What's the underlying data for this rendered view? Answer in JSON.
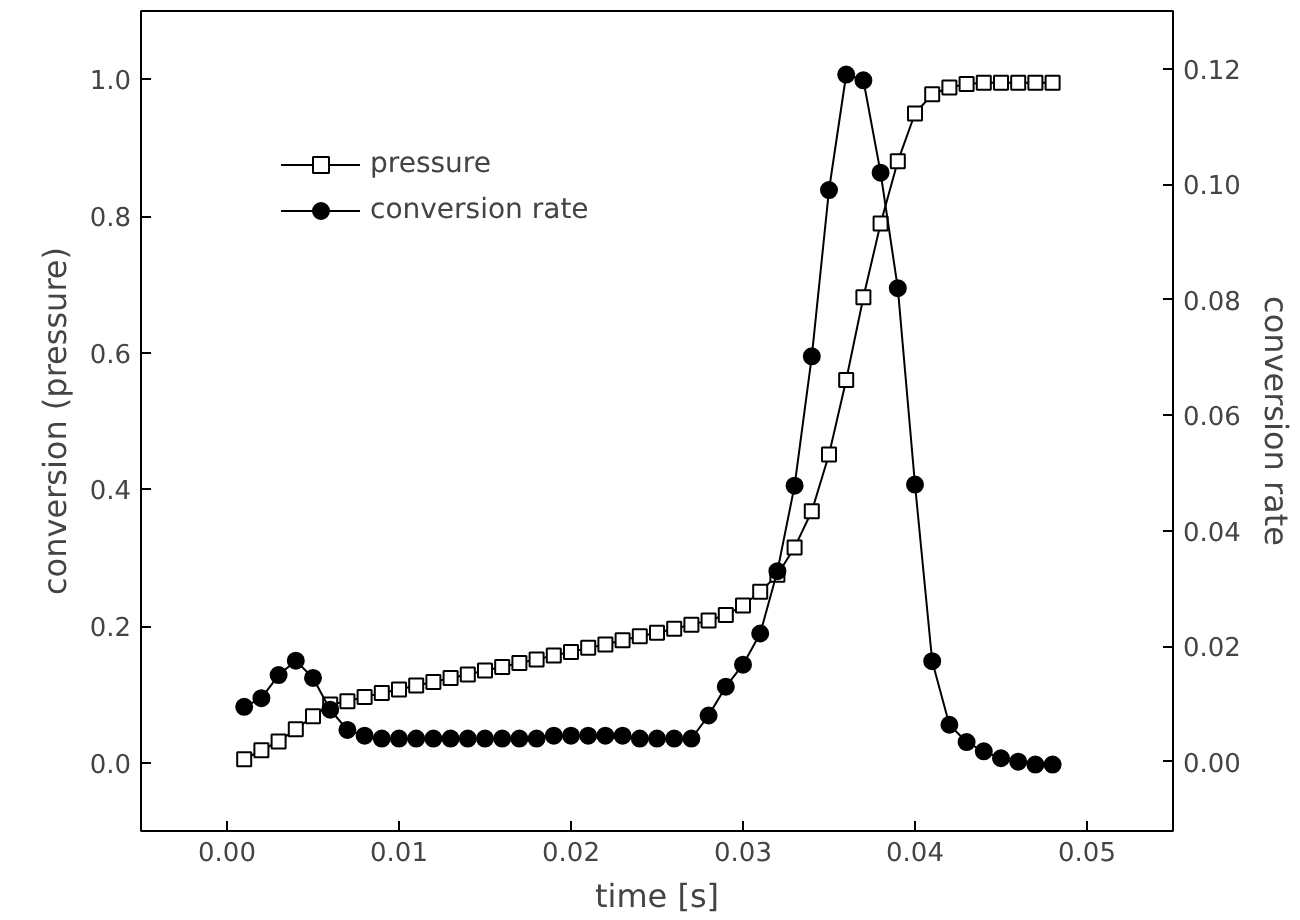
{
  "chart_data": {
    "type": "line",
    "xlabel": "time [s]",
    "ylabel": "conversion (pressure)",
    "y2label": "conversion rate",
    "x": [
      0.001,
      0.002,
      0.003,
      0.004,
      0.005,
      0.006,
      0.007,
      0.008,
      0.009,
      0.01,
      0.011,
      0.012,
      0.013,
      0.014,
      0.015,
      0.016,
      0.017,
      0.018,
      0.019,
      0.02,
      0.021,
      0.022,
      0.023,
      0.024,
      0.025,
      0.026,
      0.027,
      0.028,
      0.029,
      0.03,
      0.031,
      0.032,
      0.033,
      0.034,
      0.035,
      0.036,
      0.037,
      0.038,
      0.039,
      0.04,
      0.041,
      0.042,
      0.043,
      0.044,
      0.045,
      0.046,
      0.047,
      0.048
    ],
    "series": [
      {
        "name": "pressure",
        "color": "#000000",
        "marker": "square",
        "values": [
          0.005,
          0.018,
          0.031,
          0.049,
          0.068,
          0.085,
          0.09,
          0.096,
          0.102,
          0.107,
          0.113,
          0.118,
          0.124,
          0.129,
          0.135,
          0.14,
          0.146,
          0.151,
          0.157,
          0.162,
          0.168,
          0.173,
          0.179,
          0.185,
          0.19,
          0.196,
          0.202,
          0.208,
          0.216,
          0.23,
          0.25,
          0.275,
          0.315,
          0.368,
          0.451,
          0.56,
          0.681,
          0.789,
          0.88,
          0.95,
          0.978,
          0.988,
          0.993,
          0.995,
          0.995,
          0.995,
          0.995,
          0.995
        ]
      },
      {
        "name": "conversion rate",
        "color": "#000000",
        "marker": "circle",
        "axis": "y2",
        "values": [
          0.0095,
          0.011,
          0.015,
          0.0175,
          0.0145,
          0.009,
          0.0055,
          0.0045,
          0.004,
          0.004,
          0.004,
          0.004,
          0.004,
          0.004,
          0.004,
          0.004,
          0.004,
          0.004,
          0.0045,
          0.0045,
          0.0045,
          0.0045,
          0.0045,
          0.004,
          0.004,
          0.004,
          0.004,
          0.008,
          0.013,
          0.0168,
          0.0222,
          0.033,
          0.0478,
          0.0702,
          0.099,
          0.119,
          0.118,
          0.102,
          0.082,
          0.048,
          0.0174,
          0.0064,
          0.0034,
          0.0018,
          0.0006,
          0.0,
          -0.0005,
          -0.0005
        ]
      }
    ],
    "xlim": [
      -0.005,
      0.055
    ],
    "xticks": [
      {
        "value": 0,
        "label": "0.00"
      },
      0.01,
      0.02,
      0.03,
      0.04,
      0.05
    ],
    "ylim": [
      -0.1,
      1.1
    ],
    "yticks": [
      {
        "value": 0,
        "label": "0.0"
      },
      0.2,
      0.4,
      0.6,
      0.8,
      {
        "value": 1,
        "label": "1.0"
      }
    ],
    "y2lim": [
      -0.012,
      0.13
    ],
    "y2ticks": [
      {
        "value": 0,
        "label": "0.00"
      },
      0.02,
      0.04,
      0.06,
      0.08,
      {
        "value": 0.1,
        "label": "0.10"
      },
      0.12
    ],
    "grid": false,
    "legend": "top left",
    "line_style": "solid"
  }
}
